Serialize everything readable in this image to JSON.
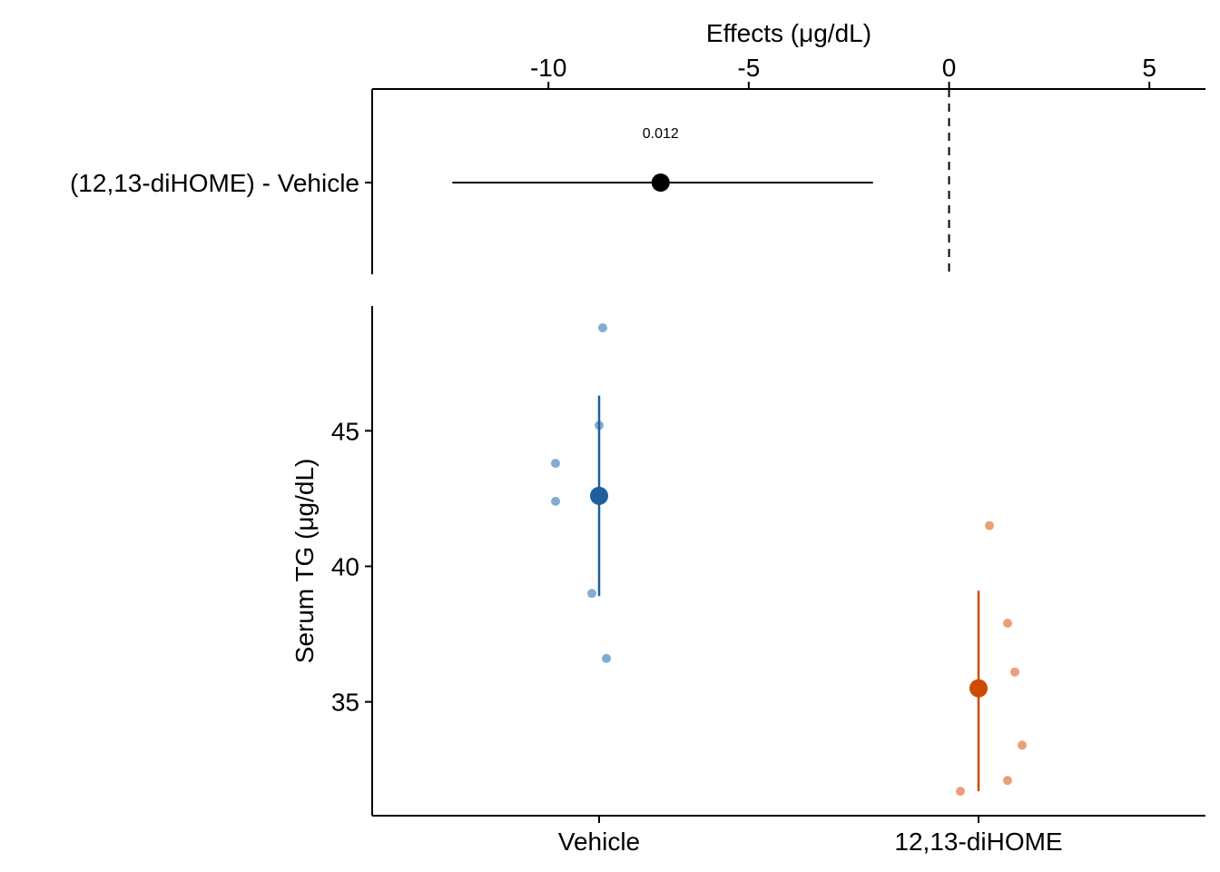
{
  "chart_data": [
    {
      "type": "scatter",
      "panel": "effects",
      "title": "",
      "xlabel": "Effects (μg/dL)",
      "ylabel": "",
      "xlim": [
        -14.4,
        6.4
      ],
      "x_ticks": [
        -10,
        -5,
        0,
        5
      ],
      "x_tick_labels": [
        "-10",
        "-5",
        "0",
        "5"
      ],
      "reference_line_x": 0,
      "contrasts": [
        {
          "label": "(12,13-diHOME) - Vehicle",
          "estimate": -7.2,
          "ci_low": -12.4,
          "ci_high": -1.9,
          "p_value_label": "0.012"
        }
      ],
      "grid": false
    },
    {
      "type": "scatter",
      "panel": "groups",
      "title": "",
      "xlabel": "",
      "ylabel": "Serum TG (μg/dL)",
      "ylim": [
        30.8,
        49.6
      ],
      "y_ticks": [
        35,
        40,
        45
      ],
      "y_tick_labels": [
        "35",
        "40",
        "45"
      ],
      "categories": [
        "Vehicle",
        "12,13-diHOME"
      ],
      "colors": {
        "Vehicle": "#1f5fa0",
        "12,13-diHOME": "#cc4c02",
        "Vehicle_points": "#6f9dcb",
        "12,13-diHOME_points": "#e58f63"
      },
      "groups": [
        {
          "name": "Vehicle",
          "mean": 42.6,
          "ci_low": 38.9,
          "ci_high": 46.3,
          "points": [
            {
              "jitter": 0.01,
              "y": 48.8
            },
            {
              "jitter": 0.0,
              "y": 45.2
            },
            {
              "jitter": -0.12,
              "y": 43.8
            },
            {
              "jitter": -0.12,
              "y": 42.4
            },
            {
              "jitter": -0.02,
              "y": 39.0
            },
            {
              "jitter": 0.02,
              "y": 36.6
            }
          ]
        },
        {
          "name": "12,13-diHOME",
          "mean": 35.5,
          "ci_low": 31.7,
          "ci_high": 39.1,
          "points": [
            {
              "jitter": 0.03,
              "y": 41.5
            },
            {
              "jitter": 0.08,
              "y": 37.9
            },
            {
              "jitter": 0.1,
              "y": 36.1
            },
            {
              "jitter": 0.12,
              "y": 33.4
            },
            {
              "jitter": 0.08,
              "y": 32.1
            },
            {
              "jitter": -0.05,
              "y": 31.7
            }
          ]
        }
      ],
      "grid": false
    }
  ]
}
